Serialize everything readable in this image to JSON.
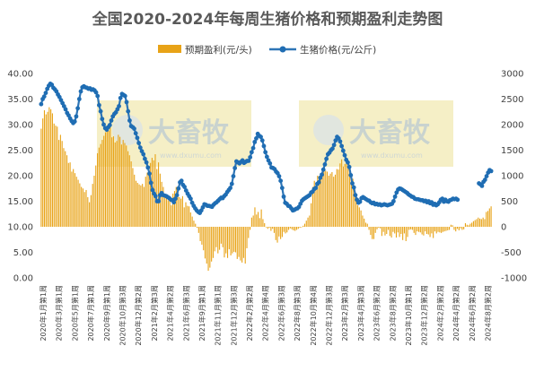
{
  "chart_data": {
    "type": "bar+line",
    "title": "全国2020-2024年每周生猪价格和预期盈利走势图",
    "legend": {
      "placement": "top-center",
      "bar_label": "预期盈利(元/头)",
      "line_label": "生猪价格(元/公斤)"
    },
    "left_axis": {
      "ylim": [
        0,
        40
      ],
      "ticks": [
        "0.00",
        "5.00",
        "10.00",
        "15.00",
        "20.00",
        "25.00",
        "30.00",
        "35.00",
        "40.00"
      ]
    },
    "right_axis": {
      "ylim": [
        -1000,
        3000
      ],
      "ticks": [
        "-1000",
        "-500",
        "0",
        "500",
        "1000",
        "1500",
        "2000",
        "2500",
        "3000"
      ]
    },
    "x_tick_labels": [
      "2020年1月第1周",
      "2020年3月第1周",
      "2020年5月第1周",
      "2020年7月第1周",
      "2020年9月第1周",
      "2020年10月第3周",
      "2020年12月第2周",
      "2021年2月第3周",
      "2021年4月第2周",
      "2021年6月第3周",
      "2021年9月第1周",
      "2021年11月第1周",
      "2021年12月第3周",
      "2022年2月第2周",
      "2022年4月第4周",
      "2022年6月第3周",
      "2022年8月第3周",
      "2022年10月第4周",
      "2022年12月第3周",
      "2023年2月第3周",
      "2023年4月第3周",
      "2023年6月第2周",
      "2023年8月第2周",
      "2023年10月第1周",
      "2023年12月第2周",
      "2024年2月第2周",
      "2024年4月第2周",
      "2024年6月第2周",
      "2024年8月第2周"
    ],
    "colors": {
      "bars": "#e8a317",
      "line": "#2e75b6",
      "markers": "#1f6db3"
    },
    "watermark": {
      "text": "大畜牧",
      "sub": "www.dxumu.com"
    },
    "series_profit": [
      1920,
      2120,
      2280,
      2200,
      2250,
      2340,
      2300,
      2220,
      2020,
      1980,
      1960,
      1700,
      1800,
      1680,
      1540,
      1480,
      1400,
      1250,
      1260,
      1080,
      1130,
      1050,
      980,
      920,
      850,
      780,
      750,
      680,
      720,
      580,
      480,
      620,
      840,
      1000,
      1200,
      1440,
      1550,
      1620,
      1700,
      1780,
      1850,
      1950,
      1880,
      1960,
      1750,
      1770,
      1650,
      1680,
      1800,
      1760,
      1610,
      1700,
      1640,
      1590,
      1480,
      1400,
      1280,
      1150,
      1020,
      900,
      860,
      830,
      810,
      840,
      780,
      980,
      1060,
      1150,
      1250,
      1350,
      1300,
      1420,
      1130,
      1260,
      1040,
      880,
      780,
      590,
      630,
      520,
      600,
      420,
      650,
      700,
      780,
      680,
      580,
      550,
      600,
      380,
      480,
      410,
      400,
      280,
      200,
      120,
      60,
      -20,
      -120,
      -280,
      -350,
      -460,
      -620,
      -720,
      -860,
      -800,
      -680,
      -610,
      -480,
      -400,
      -520,
      -450,
      -330,
      -400,
      -600,
      -520,
      -610,
      -440,
      -560,
      -520,
      -490,
      -500,
      -630,
      -590,
      -660,
      -700,
      -610,
      -720,
      -420,
      -220,
      -60,
      180,
      220,
      380,
      240,
      290,
      170,
      340,
      150,
      70,
      0,
      -40,
      -20,
      -80,
      -40,
      -120,
      -260,
      -310,
      -190,
      -240,
      -200,
      -100,
      -130,
      -110,
      -60,
      -30,
      -50,
      -70,
      -80,
      -60,
      -40,
      -20,
      -10,
      20,
      60,
      120,
      180,
      220,
      460,
      780,
      900,
      800,
      1000,
      960,
      1020,
      1060,
      1140,
      1100,
      1080,
      1000,
      1040,
      1070,
      980,
      1020,
      1130,
      1120,
      1240,
      1320,
      1180,
      1230,
      1310,
      1180,
      1080,
      930,
      940,
      780,
      560,
      420,
      380,
      320,
      220,
      160,
      80,
      60,
      -60,
      -160,
      -240,
      -240,
      -120,
      -50,
      -20,
      -30,
      -180,
      -100,
      -170,
      -140,
      -60,
      -180,
      -210,
      -100,
      -130,
      -210,
      -110,
      -200,
      -140,
      -260,
      -130,
      -280,
      -200,
      -60,
      -50,
      -60,
      -120,
      -160,
      -90,
      -100,
      -110,
      -150,
      -170,
      -90,
      -140,
      -150,
      -200,
      -130,
      -220,
      -90,
      -130,
      -100,
      -110,
      -120,
      -100,
      -90,
      -80,
      -70,
      -60,
      40,
      30,
      -60,
      -90,
      -40,
      -70,
      -30,
      -60,
      -50,
      70,
      40,
      30,
      60,
      80,
      110,
      130,
      150,
      180,
      160,
      150,
      180,
      150,
      290,
      310,
      360,
      400
    ],
    "series_price": [
      34,
      35,
      35.5,
      36.2,
      37,
      37.6,
      38,
      37.8,
      37.2,
      36.9,
      36.5,
      35.9,
      35.4,
      34.8,
      34.2,
      33.6,
      33,
      32.3,
      31.8,
      31.2,
      30.7,
      30.3,
      30.6,
      31.6,
      33.2,
      35,
      36.5,
      37.3,
      37.5,
      37.3,
      37.2,
      37,
      37.1,
      36.8,
      36.9,
      36.7,
      36.3,
      35.6,
      33.8,
      32.6,
      31.1,
      30,
      29.3,
      29,
      29.5,
      29.9,
      30.8,
      31.6,
      32.1,
      32.4,
      33,
      33.6,
      35.2,
      36,
      35.8,
      35.6,
      34.4,
      32.6,
      30.8,
      29.7,
      29.5,
      29.2,
      28.3,
      27.4,
      26.4,
      25.5,
      24.8,
      24.2,
      23.3,
      22.6,
      21.6,
      20.4,
      18.6,
      17.2,
      16.5,
      16,
      15,
      15,
      16.2,
      16.6,
      16.2,
      16.1,
      16,
      15.8,
      15.6,
      15.3,
      15.2,
      14.8,
      15.5,
      16.2,
      17.5,
      18.7,
      19,
      18.2,
      17.8,
      17.1,
      16.5,
      16,
      15.5,
      14.7,
      14.1,
      13.6,
      13.2,
      12.9,
      12.7,
      13.2,
      13.8,
      14.4,
      14.3,
      14.1,
      14.1,
      14,
      13.9,
      14.3,
      14.6,
      14.8,
      15.1,
      15.4,
      15.7,
      15.6,
      16,
      16.3,
      16.8,
      17.2,
      17.6,
      18.4,
      19.9,
      21.5,
      22.8,
      22.6,
      22.4,
      22.7,
      23,
      22.5,
      22.7,
      22.9,
      22.9,
      23.6,
      24.6,
      25.4,
      26.6,
      27.3,
      28.2,
      27.8,
      27.6,
      26.9,
      25.8,
      24.6,
      23.7,
      23,
      22.4,
      21.6,
      21.5,
      21.3,
      20.8,
      20.5,
      19.9,
      19,
      17.6,
      15.9,
      14.7,
      14.5,
      14.1,
      14,
      13.6,
      13.2,
      13.3,
      13.5,
      13.6,
      13.9,
      14.5,
      15.1,
      15.4,
      15.6,
      15.8,
      16,
      16.2,
      16.7,
      16.9,
      17.4,
      17.6,
      18.4,
      18.7,
      19.6,
      20.2,
      21.2,
      22.2,
      23.3,
      24.2,
      24.5,
      25,
      25.3,
      26,
      26.9,
      27.6,
      27.3,
      26.7,
      25.8,
      24.9,
      24,
      23.1,
      22.6,
      21.7,
      20.1,
      18.5,
      17.7,
      16.2,
      15.3,
      14.7,
      14.9,
      15.6,
      15.8,
      15.6,
      15.4,
      15.2,
      15.1,
      14.8,
      14.6,
      14.7,
      14.4,
      14.5,
      14.3,
      14.4,
      14.2,
      14.3,
      14.4,
      14.3,
      14.2,
      14.3,
      14.4,
      14.5,
      15,
      15.9,
      16.7,
      17.3,
      17.5,
      17.4,
      17.2,
      17,
      16.8,
      16.6,
      16.3,
      16.1,
      15.9,
      15.8,
      15.5,
      15.4,
      15.4,
      15.3,
      15.2,
      15.2,
      15,
      15.1,
      14.8,
      15,
      14.6,
      14.8,
      14.3,
      14.5,
      14.2,
      14.4,
      14.8,
      15.3,
      15.5,
      14.9,
      15.3,
      15,
      14.9,
      15.2,
      15.3,
      15.5,
      15.4,
      15.5,
      15.3,
      null,
      null,
      null,
      null,
      null,
      null,
      null,
      null,
      null,
      null,
      null,
      null,
      null,
      18.5,
      18.3,
      18,
      18.8,
      19.2,
      19.9,
      20.6,
      21.1,
      20.9
    ]
  }
}
